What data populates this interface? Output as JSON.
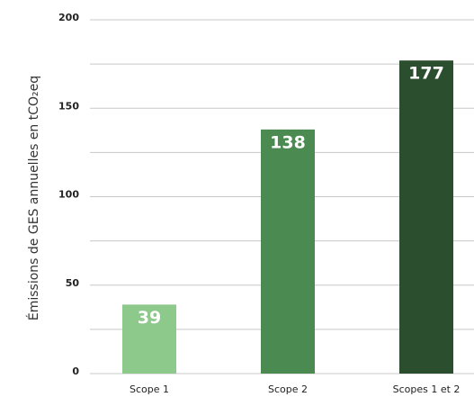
{
  "chart_data": {
    "type": "bar",
    "y_label": "Émissions de GES annuelles en tCO₂eq",
    "categories": [
      "Scope 1",
      "Scope 2",
      "Scopes 1 et 2"
    ],
    "values": [
      39,
      138,
      177
    ],
    "colors": [
      "#8dc98b",
      "#4b8a50",
      "#2b4f2e"
    ],
    "ylim": [
      0,
      200
    ],
    "yticks": [
      0,
      50,
      100,
      150,
      200
    ],
    "minor_yticks": [
      25,
      75,
      125,
      175
    ],
    "grid": true
  }
}
